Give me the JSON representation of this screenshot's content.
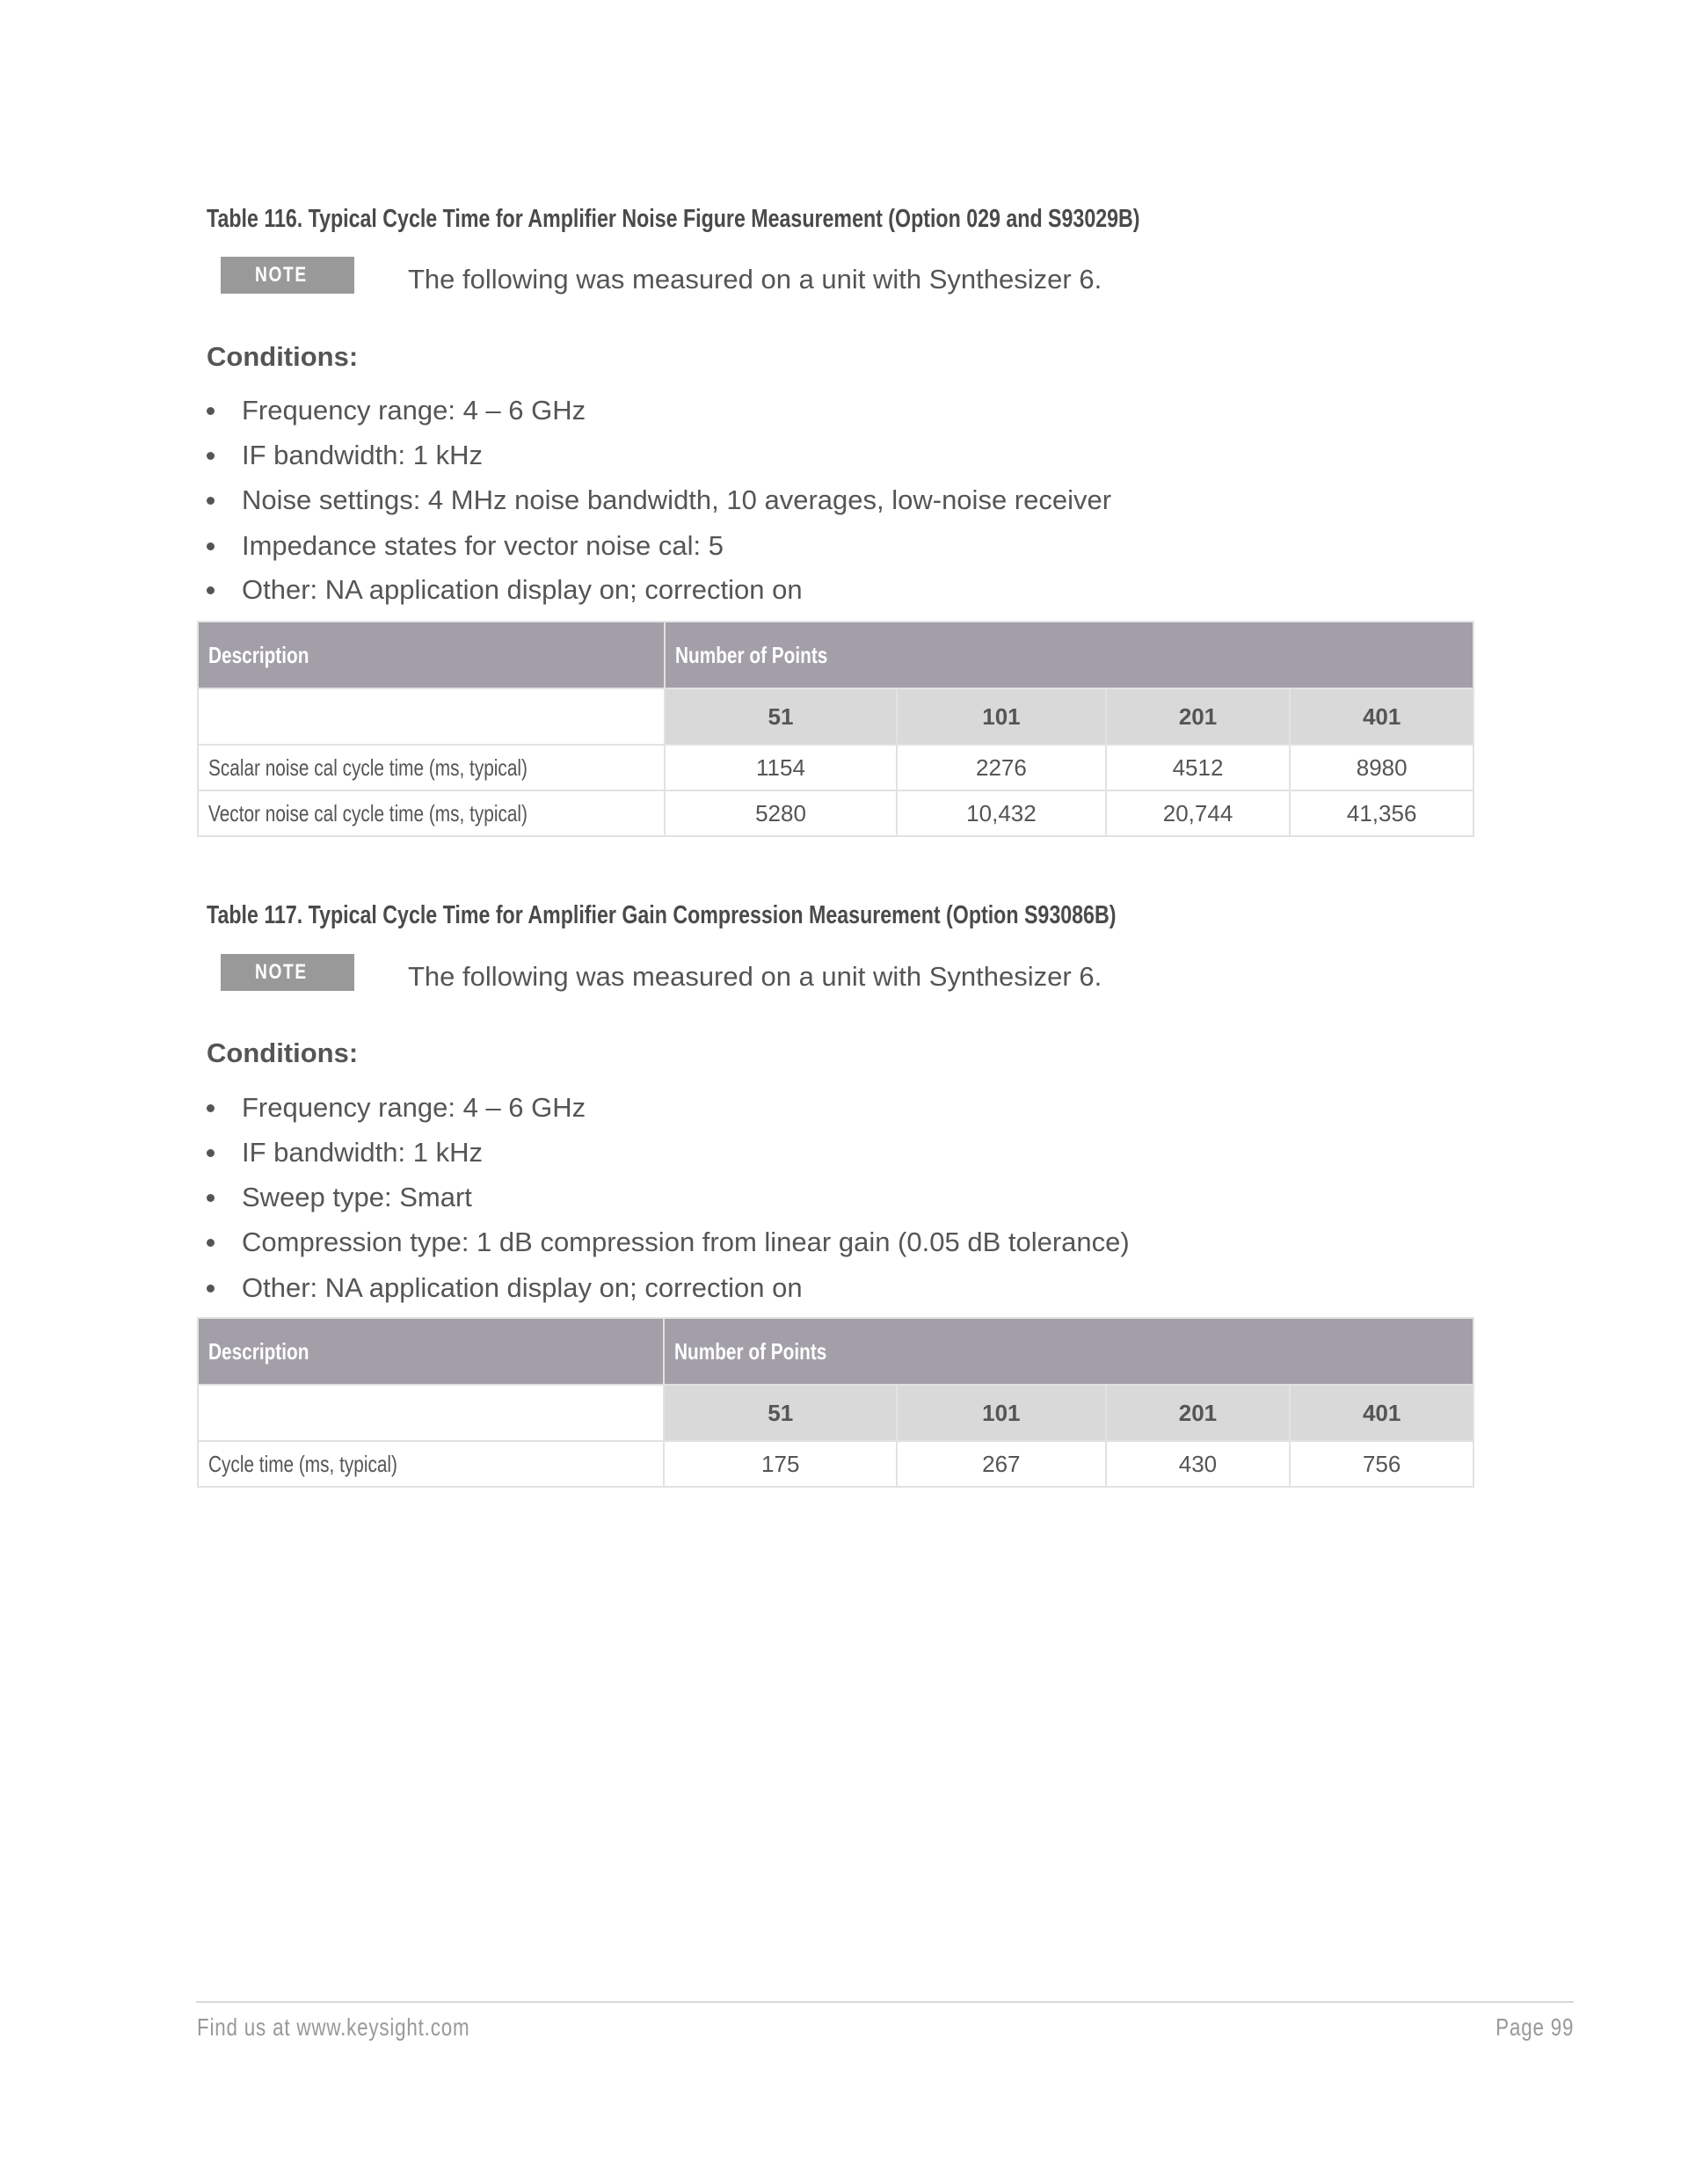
{
  "tables": [
    {
      "title": "Table 116. Typical Cycle Time for Amplifier Noise Figure Measurement (Option 029 and S93029B)",
      "note_label": "NOTE",
      "note_text": "The following was measured on a unit with Synthesizer 6.",
      "conditions_heading": "Conditions:",
      "conditions": [
        "Frequency range: 4 – 6 GHz",
        "IF bandwidth: 1 kHz",
        "Noise settings: 4 MHz noise bandwidth, 10 averages, low-noise receiver",
        "Impedance states for vector noise cal: 5",
        "Other: NA application display on; correction on"
      ],
      "header": {
        "description": "Description",
        "group": "Number of Points"
      },
      "columns": [
        "51",
        "101",
        "201",
        "401"
      ],
      "rows": [
        {
          "description": "Scalar noise cal cycle time (ms, typical)",
          "values": [
            "1154",
            "2276",
            "4512",
            "8980"
          ]
        },
        {
          "description": "Vector noise cal cycle time (ms, typical)",
          "values": [
            "5280",
            "10,432",
            "20,744",
            "41,356"
          ]
        }
      ]
    },
    {
      "title": "Table 117. Typical Cycle Time for Amplifier Gain Compression Measurement (Option S93086B)",
      "note_label": "NOTE",
      "note_text": "The following was measured on a unit with Synthesizer 6.",
      "conditions_heading": "Conditions:",
      "conditions": [
        "Frequency range: 4 – 6 GHz",
        "IF bandwidth: 1 kHz",
        "Sweep type: Smart",
        "Compression type: 1 dB compression from linear gain (0.05 dB tolerance)",
        "Other: NA application display on; correction on"
      ],
      "header": {
        "description": "Description",
        "group": "Number of Points"
      },
      "columns": [
        "51",
        "101",
        "201",
        "401"
      ],
      "rows": [
        {
          "description": "Cycle time (ms, typical)",
          "values": [
            "175",
            "267",
            "430",
            "756"
          ]
        }
      ]
    }
  ],
  "footer": {
    "left": "Find us at www.keysight.com",
    "right": "Page 99"
  },
  "colors": {
    "header_bg": "#a39fa8",
    "subheader_bg": "#d9d9d9",
    "note_bg": "#999999"
  }
}
